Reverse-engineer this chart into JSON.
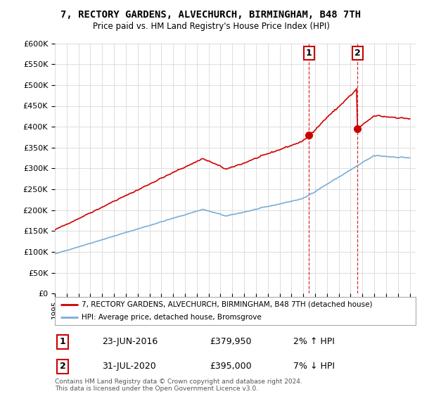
{
  "title": "7, RECTORY GARDENS, ALVECHURCH, BIRMINGHAM, B48 7TH",
  "subtitle": "Price paid vs. HM Land Registry's House Price Index (HPI)",
  "ylabel_ticks": [
    "£0",
    "£50K",
    "£100K",
    "£150K",
    "£200K",
    "£250K",
    "£300K",
    "£350K",
    "£400K",
    "£450K",
    "£500K",
    "£550K",
    "£600K"
  ],
  "ylim": [
    0,
    600000
  ],
  "yticks": [
    0,
    50000,
    100000,
    150000,
    200000,
    250000,
    300000,
    350000,
    400000,
    450000,
    500000,
    550000,
    600000
  ],
  "xlim_start": 1995.0,
  "xlim_end": 2025.5,
  "legend_line1": "7, RECTORY GARDENS, ALVECHURCH, BIRMINGHAM, B48 7TH (detached house)",
  "legend_line2": "HPI: Average price, detached house, Bromsgrove",
  "marker1_date": "23-JUN-2016",
  "marker1_price": "£379,950",
  "marker1_pct": "2% ↑ HPI",
  "marker2_date": "31-JUL-2020",
  "marker2_price": "£395,000",
  "marker2_pct": "7% ↓ HPI",
  "footer": "Contains HM Land Registry data © Crown copyright and database right 2024.\nThis data is licensed under the Open Government Licence v3.0.",
  "red_color": "#cc0000",
  "blue_color": "#7aadd4",
  "marker_box_color": "#cc0000",
  "dashed_line_color": "#cc0000",
  "background_color": "#ffffff",
  "grid_color": "#dddddd",
  "sale1_year": 2016.47,
  "sale2_year": 2020.58,
  "sale1_price": 379950,
  "sale2_price": 395000
}
